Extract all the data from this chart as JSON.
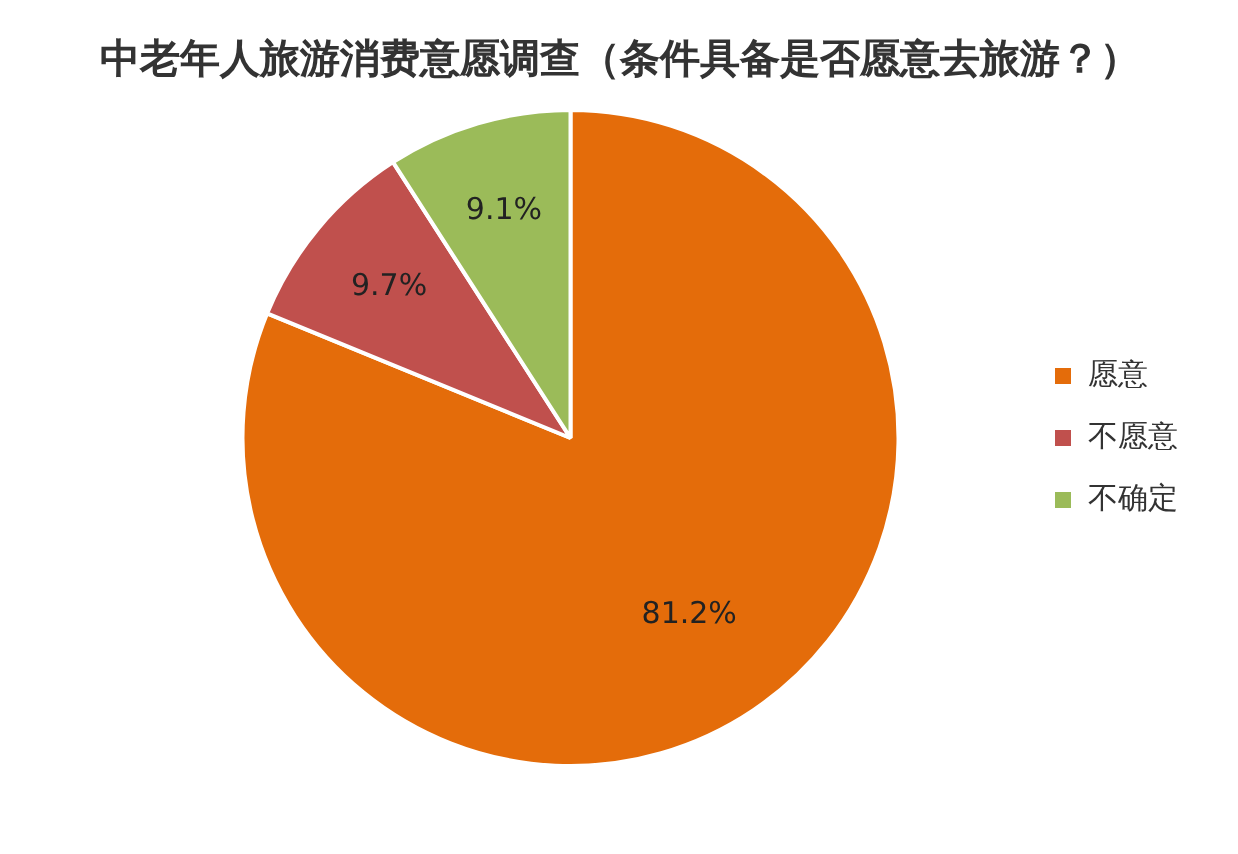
{
  "chart_data": {
    "type": "pie",
    "title": "中老年人旅游消费意愿调查（条件具备是否愿意去旅游？）",
    "categories": [
      "愿意",
      "不愿意",
      "不确定"
    ],
    "values": [
      81.2,
      9.7,
      9.1
    ],
    "value_labels": [
      "81.2%",
      "9.7%",
      "9.1%"
    ],
    "colors": [
      "#e46c0a",
      "#c0504d",
      "#9bbb59"
    ],
    "legend": "right"
  }
}
